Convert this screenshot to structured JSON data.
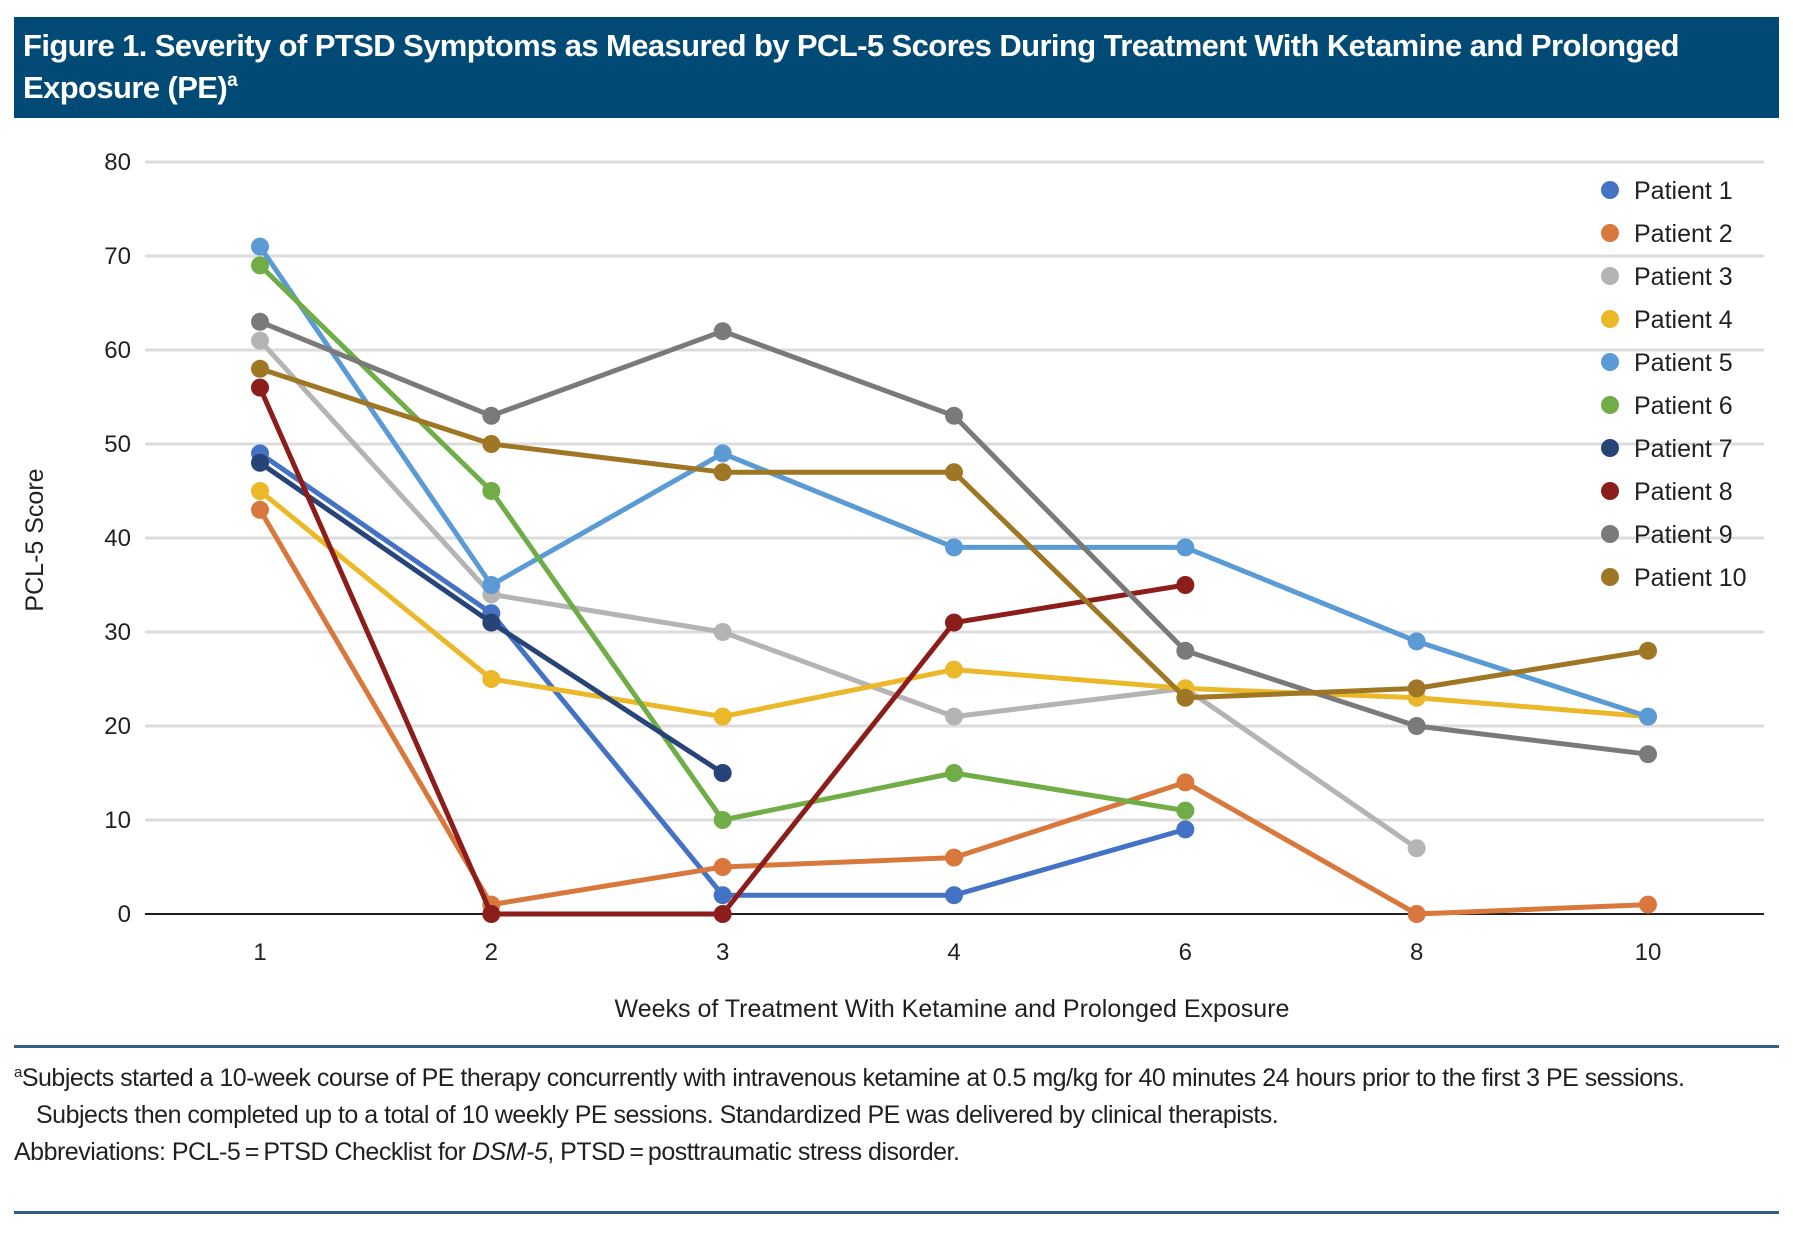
{
  "title": {
    "text": "Figure 1. Severity of PTSD Symptoms as Measured by PCL-5 Scores During Treatment With Ketamine and Prolonged Exposure (PE)",
    "superscript": "a"
  },
  "chart_data": {
    "type": "line",
    "title": "Figure 1. Severity of PTSD Symptoms as Measured by PCL-5 Scores During Treatment With Ketamine and Prolonged Exposure (PE)",
    "xlabel": "Weeks of Treatment With Ketamine and Prolonged Exposure",
    "ylabel": "PCL-5 Score",
    "categories": [
      "1",
      "2",
      "3",
      "4",
      "6",
      "8",
      "10"
    ],
    "ylim": [
      0,
      80
    ],
    "yticks": [
      0,
      10,
      20,
      30,
      40,
      50,
      60,
      70,
      80
    ],
    "grid": true,
    "legend_position": "top-right",
    "series": [
      {
        "name": "Patient 1",
        "color": "#4472c4",
        "values": [
          49,
          32,
          2,
          2,
          9,
          null,
          null
        ]
      },
      {
        "name": "Patient 2",
        "color": "#d9783c",
        "values": [
          43,
          1,
          5,
          6,
          14,
          0,
          1
        ]
      },
      {
        "name": "Patient 3",
        "color": "#b4b4b4",
        "values": [
          61,
          34,
          30,
          21,
          24,
          7,
          null
        ]
      },
      {
        "name": "Patient 4",
        "color": "#ebb82a",
        "values": [
          45,
          25,
          21,
          26,
          24,
          23,
          21
        ]
      },
      {
        "name": "Patient 5",
        "color": "#5b9bd5",
        "values": [
          71,
          35,
          49,
          39,
          39,
          29,
          21
        ]
      },
      {
        "name": "Patient 6",
        "color": "#70ad47",
        "values": [
          69,
          45,
          10,
          15,
          11,
          null,
          null
        ]
      },
      {
        "name": "Patient 7",
        "color": "#264478",
        "values": [
          48,
          31,
          15,
          null,
          null,
          null,
          null
        ]
      },
      {
        "name": "Patient 8",
        "color": "#8b1e1b",
        "values": [
          56,
          0,
          0,
          31,
          35,
          null,
          null
        ]
      },
      {
        "name": "Patient 9",
        "color": "#7a7a7a",
        "values": [
          63,
          53,
          62,
          53,
          28,
          20,
          17
        ]
      },
      {
        "name": "Patient 10",
        "color": "#9e7624",
        "values": [
          58,
          50,
          47,
          47,
          23,
          24,
          28
        ]
      }
    ]
  },
  "footnotes": {
    "a_marker": "a",
    "a_text": "Subjects started a 10-week course of PE therapy concurrently with intravenous ketamine at 0.5 mg/kg for 40 minutes 24 hours prior to the first 3 PE sessions. Subjects then completed up to a total of 10 weekly PE sessions. Standardized PE was delivered by clinical therapists.",
    "abbrev_prefix": "Abbreviations: PCL-5 = PTSD Checklist for ",
    "abbrev_italic": "DSM-5",
    "abbrev_suffix": ", PTSD = posttraumatic stress disorder."
  },
  "colors": {
    "title_bar": "#004a75",
    "rule": "#2f5f8a",
    "gridline": "#dcdcdc",
    "axis": "#231f20"
  }
}
